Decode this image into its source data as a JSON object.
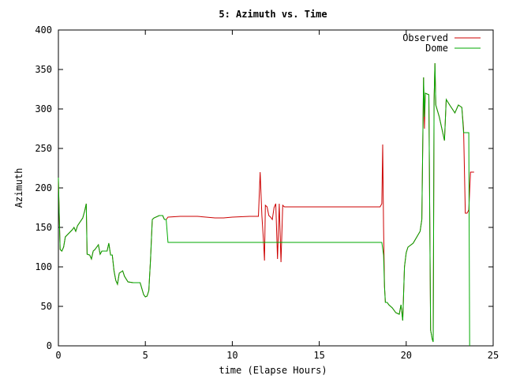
{
  "chart_data": {
    "type": "line",
    "title": "5: Azimuth vs. Time",
    "xlabel": "time (Elapse Hours)",
    "ylabel": "Azimuth",
    "xlim": [
      0,
      25
    ],
    "ylim": [
      0,
      400
    ],
    "xticks": [
      0,
      5,
      10,
      15,
      20,
      25
    ],
    "yticks": [
      0,
      50,
      100,
      150,
      200,
      250,
      300,
      350,
      400
    ],
    "grid": false,
    "legend_position": "top-right",
    "series": [
      {
        "name": "Observed",
        "color": "#cc0000",
        "points": [
          [
            0.0,
            210
          ],
          [
            0.05,
            165
          ],
          [
            0.1,
            122
          ],
          [
            0.2,
            120
          ],
          [
            0.3,
            125
          ],
          [
            0.4,
            138
          ],
          [
            0.8,
            147
          ],
          [
            0.9,
            150
          ],
          [
            1.0,
            145
          ],
          [
            1.1,
            152
          ],
          [
            1.4,
            162
          ],
          [
            1.5,
            170
          ],
          [
            1.6,
            180
          ],
          [
            1.65,
            116
          ],
          [
            1.8,
            115
          ],
          [
            1.9,
            110
          ],
          [
            2.0,
            120
          ],
          [
            2.1,
            122
          ],
          [
            2.2,
            125
          ],
          [
            2.3,
            128
          ],
          [
            2.4,
            116
          ],
          [
            2.5,
            120
          ],
          [
            2.6,
            120
          ],
          [
            2.8,
            120
          ],
          [
            2.9,
            130
          ],
          [
            3.0,
            115
          ],
          [
            3.1,
            115
          ],
          [
            3.2,
            95
          ],
          [
            3.3,
            83
          ],
          [
            3.4,
            78
          ],
          [
            3.5,
            92
          ],
          [
            3.7,
            95
          ],
          [
            3.8,
            88
          ],
          [
            4.0,
            81
          ],
          [
            4.3,
            80
          ],
          [
            4.7,
            80
          ],
          [
            4.9,
            65
          ],
          [
            5.0,
            62
          ],
          [
            5.1,
            63
          ],
          [
            5.2,
            70
          ],
          [
            5.3,
            110
          ],
          [
            5.4,
            160
          ],
          [
            5.5,
            162
          ],
          [
            5.8,
            165
          ],
          [
            6.0,
            165
          ],
          [
            6.1,
            160
          ],
          [
            6.2,
            160
          ],
          [
            6.3,
            163
          ],
          [
            7.0,
            164
          ],
          [
            8.0,
            164
          ],
          [
            9.0,
            162
          ],
          [
            9.5,
            162
          ],
          [
            10.0,
            163
          ],
          [
            11.0,
            164
          ],
          [
            11.5,
            164
          ],
          [
            11.6,
            220
          ],
          [
            11.7,
            165
          ],
          [
            11.8,
            130
          ],
          [
            11.85,
            108
          ],
          [
            11.9,
            178
          ],
          [
            12.0,
            176
          ],
          [
            12.1,
            165
          ],
          [
            12.2,
            163
          ],
          [
            12.3,
            160
          ],
          [
            12.4,
            175
          ],
          [
            12.5,
            180
          ],
          [
            12.6,
            110
          ],
          [
            12.7,
            180
          ],
          [
            12.8,
            106
          ],
          [
            12.9,
            178
          ],
          [
            13.0,
            176
          ],
          [
            13.2,
            176
          ],
          [
            14.0,
            176
          ],
          [
            15.0,
            176
          ],
          [
            16.0,
            176
          ],
          [
            17.0,
            176
          ],
          [
            18.0,
            176
          ],
          [
            18.5,
            176
          ],
          [
            18.6,
            180
          ],
          [
            18.65,
            255
          ],
          [
            18.7,
            150
          ],
          [
            18.75,
            75
          ],
          [
            18.8,
            55
          ],
          [
            18.9,
            55
          ],
          [
            19.0,
            52
          ],
          [
            19.2,
            48
          ],
          [
            19.4,
            42
          ],
          [
            19.6,
            40
          ],
          [
            19.7,
            52
          ],
          [
            19.8,
            32
          ],
          [
            19.9,
            100
          ],
          [
            20.0,
            118
          ],
          [
            20.1,
            125
          ],
          [
            20.4,
            130
          ],
          [
            20.8,
            145
          ],
          [
            20.9,
            160
          ],
          [
            21.0,
            340
          ],
          [
            21.05,
            275
          ],
          [
            21.1,
            320
          ],
          [
            21.3,
            318
          ],
          [
            21.4,
            20
          ],
          [
            21.5,
            8
          ],
          [
            21.55,
            5
          ],
          [
            21.6,
            310
          ],
          [
            21.65,
            358
          ],
          [
            21.7,
            305
          ],
          [
            21.9,
            290
          ],
          [
            22.0,
            280
          ],
          [
            22.1,
            270
          ],
          [
            22.2,
            260
          ],
          [
            22.3,
            312
          ],
          [
            22.5,
            305
          ],
          [
            22.8,
            295
          ],
          [
            23.0,
            305
          ],
          [
            23.2,
            302
          ],
          [
            23.3,
            275
          ],
          [
            23.4,
            168
          ],
          [
            23.5,
            168
          ],
          [
            23.6,
            172
          ],
          [
            23.7,
            220
          ],
          [
            23.9,
            220
          ]
        ]
      },
      {
        "name": "Dome",
        "color": "#00aa00",
        "points": [
          [
            0.0,
            213
          ],
          [
            0.05,
            165
          ],
          [
            0.1,
            122
          ],
          [
            0.2,
            120
          ],
          [
            0.3,
            125
          ],
          [
            0.4,
            138
          ],
          [
            0.8,
            147
          ],
          [
            0.9,
            150
          ],
          [
            1.0,
            145
          ],
          [
            1.1,
            152
          ],
          [
            1.4,
            162
          ],
          [
            1.5,
            170
          ],
          [
            1.6,
            180
          ],
          [
            1.65,
            116
          ],
          [
            1.8,
            115
          ],
          [
            1.9,
            110
          ],
          [
            2.0,
            120
          ],
          [
            2.1,
            122
          ],
          [
            2.2,
            125
          ],
          [
            2.3,
            128
          ],
          [
            2.4,
            116
          ],
          [
            2.5,
            120
          ],
          [
            2.6,
            120
          ],
          [
            2.8,
            120
          ],
          [
            2.9,
            130
          ],
          [
            3.0,
            115
          ],
          [
            3.1,
            115
          ],
          [
            3.2,
            95
          ],
          [
            3.3,
            83
          ],
          [
            3.4,
            78
          ],
          [
            3.5,
            92
          ],
          [
            3.7,
            95
          ],
          [
            3.8,
            88
          ],
          [
            4.0,
            81
          ],
          [
            4.3,
            80
          ],
          [
            4.7,
            80
          ],
          [
            4.9,
            65
          ],
          [
            5.0,
            62
          ],
          [
            5.1,
            63
          ],
          [
            5.2,
            70
          ],
          [
            5.3,
            110
          ],
          [
            5.4,
            160
          ],
          [
            5.5,
            162
          ],
          [
            5.8,
            165
          ],
          [
            6.0,
            165
          ],
          [
            6.1,
            160
          ],
          [
            6.2,
            160
          ],
          [
            6.3,
            131
          ],
          [
            7.0,
            131
          ],
          [
            10.0,
            131
          ],
          [
            12.0,
            131
          ],
          [
            15.0,
            131
          ],
          [
            18.0,
            131
          ],
          [
            18.6,
            131
          ],
          [
            18.7,
            115
          ],
          [
            18.75,
            75
          ],
          [
            18.8,
            55
          ],
          [
            18.9,
            55
          ],
          [
            19.0,
            52
          ],
          [
            19.2,
            48
          ],
          [
            19.4,
            42
          ],
          [
            19.6,
            40
          ],
          [
            19.7,
            52
          ],
          [
            19.8,
            32
          ],
          [
            19.9,
            100
          ],
          [
            20.0,
            118
          ],
          [
            20.1,
            125
          ],
          [
            20.4,
            130
          ],
          [
            20.8,
            145
          ],
          [
            20.9,
            160
          ],
          [
            21.0,
            340
          ],
          [
            21.05,
            290
          ],
          [
            21.1,
            320
          ],
          [
            21.3,
            318
          ],
          [
            21.4,
            20
          ],
          [
            21.5,
            8
          ],
          [
            21.55,
            5
          ],
          [
            21.6,
            310
          ],
          [
            21.65,
            358
          ],
          [
            21.7,
            305
          ],
          [
            21.9,
            290
          ],
          [
            22.0,
            280
          ],
          [
            22.1,
            270
          ],
          [
            22.2,
            260
          ],
          [
            22.3,
            312
          ],
          [
            22.5,
            305
          ],
          [
            22.8,
            295
          ],
          [
            23.0,
            305
          ],
          [
            23.2,
            302
          ],
          [
            23.3,
            270
          ],
          [
            23.6,
            270
          ],
          [
            23.65,
            0
          ]
        ]
      }
    ]
  }
}
